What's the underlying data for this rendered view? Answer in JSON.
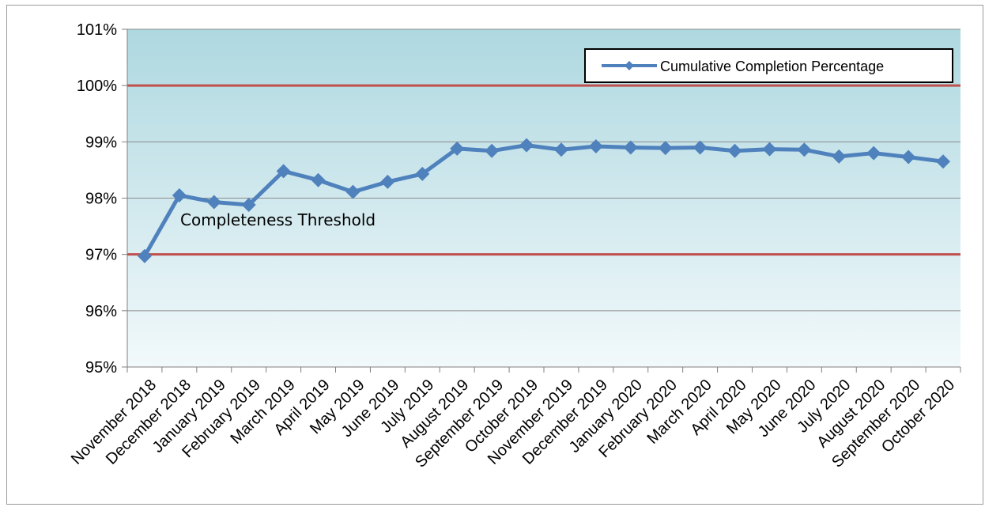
{
  "chart_data": {
    "type": "line",
    "categories": [
      "November 2018",
      "December 2018",
      "January 2019",
      "February 2019",
      "March 2019",
      "April 2019",
      "May 2019",
      "June 2019",
      "July 2019",
      "August 2019",
      "September 2019",
      "October 2019",
      "November 2019",
      "December 2019",
      "January 2020",
      "February 2020",
      "March 2020",
      "April 2020",
      "May 2020",
      "June 2020",
      "July 2020",
      "August 2020",
      "September 2020",
      "October 2020"
    ],
    "series": [
      {
        "name": "Cumulative Completion Percentage",
        "values": [
          96.97,
          98.05,
          97.93,
          97.88,
          98.48,
          98.32,
          98.11,
          98.29,
          98.43,
          98.88,
          98.84,
          98.94,
          98.86,
          98.92,
          98.9,
          98.89,
          98.9,
          98.84,
          98.87,
          98.86,
          98.74,
          98.8,
          98.73,
          98.65
        ],
        "color": "#4f81bd"
      }
    ],
    "ylim": [
      95,
      101
    ],
    "yticks": [
      "95%",
      "96%",
      "97%",
      "98%",
      "99%",
      "100%",
      "101%"
    ],
    "reference_lines": [
      {
        "value": 100,
        "color": "#c0504d"
      },
      {
        "value": 97,
        "color": "#c0504d"
      }
    ],
    "annotation": "Completeness Threshold",
    "legend_position": "top-right",
    "grid": true,
    "background_gradient": [
      "#aed8e0",
      "#f2f9fb"
    ]
  }
}
